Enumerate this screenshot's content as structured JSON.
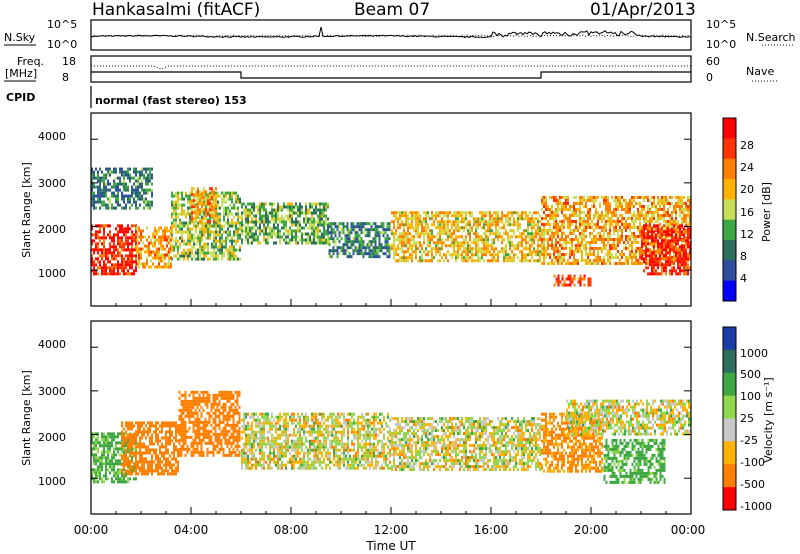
{
  "header": {
    "station": "Hankasalmi (fitACF)",
    "beam": "Beam 07",
    "date": "01/Apr/2013"
  },
  "noise_panel": {
    "left_label": "N.Sky",
    "right_label": "N.Search",
    "ticks": [
      "10^5",
      "10^0"
    ]
  },
  "freq_panel": {
    "left_label": "Freq.",
    "left_unit": "[MHz]",
    "left_ticks": [
      "18",
      "8"
    ],
    "right_ticks": [
      "60",
      "0"
    ],
    "right_label": "Nave",
    "cpid_label": "CPID",
    "cpid_value": "normal (fast stereo) 153"
  },
  "x_axis": {
    "label": "Time UT",
    "ticks": [
      "00:00",
      "04:00",
      "08:00",
      "12:00",
      "16:00",
      "20:00",
      "00:00"
    ]
  },
  "power_panel": {
    "ylabel": "Slant Range [km]",
    "yticks": [
      "4000",
      "3000",
      "2000",
      "1000"
    ],
    "colorbar_label": "Power [dB]",
    "colorbar_ticks": [
      "28",
      "24",
      "20",
      "16",
      "12",
      "8",
      "4"
    ],
    "colors": [
      "#ff0000",
      "#ff3300",
      "#ff7f00",
      "#ffb300",
      "#c6e05a",
      "#3da841",
      "#2d6e5f",
      "#2d4f9e",
      "#0000ff"
    ]
  },
  "velocity_panel": {
    "ylabel": "Slant Range [km]",
    "yticks": [
      "4000",
      "3000",
      "2000",
      "1000"
    ],
    "colorbar_label": "Velocity [m s⁻¹]",
    "colorbar_ticks": [
      "1000",
      "500",
      "100",
      "25",
      "-25",
      "-100",
      "-500",
      "-1000"
    ],
    "colors": [
      "#1a3da8",
      "#2d6e5f",
      "#3da841",
      "#8fd84c",
      "#c8c8c8",
      "#ffb300",
      "#ff7f00",
      "#ff0000"
    ]
  },
  "chart_data": {
    "type": "heatmap",
    "x_hours": [
      0,
      24
    ],
    "y_range_km": [
      180,
      4600
    ],
    "power_db": {
      "range": [
        0,
        30
      ],
      "blobs": [
        {
          "t": [
            0.0,
            1.8
          ],
          "r": [
            900,
            2050
          ],
          "power": 28
        },
        {
          "t": [
            1.8,
            3.2
          ],
          "r": [
            1050,
            2000
          ],
          "power": 20
        },
        {
          "t": [
            3.2,
            6.0
          ],
          "r": [
            1250,
            2800
          ],
          "power": 14
        },
        {
          "t": [
            4.0,
            5.0
          ],
          "r": [
            2100,
            2900
          ],
          "power": 20
        },
        {
          "t": [
            6.0,
            9.5
          ],
          "r": [
            1600,
            2550
          ],
          "power": 12
        },
        {
          "t": [
            9.5,
            12.0
          ],
          "r": [
            1250,
            2100
          ],
          "power": 8
        },
        {
          "t": [
            12.0,
            18.0
          ],
          "r": [
            1150,
            2350
          ],
          "power": 18
        },
        {
          "t": [
            18.0,
            24.0
          ],
          "r": [
            1100,
            2700
          ],
          "power": 20
        },
        {
          "t": [
            22.0,
            24.0
          ],
          "r": [
            850,
            2050
          ],
          "power": 28
        },
        {
          "t": [
            18.5,
            20.0
          ],
          "r": [
            600,
            900
          ],
          "power": 26
        },
        {
          "t": [
            0.0,
            2.5
          ],
          "r": [
            2400,
            3350
          ],
          "power": 8
        }
      ]
    },
    "velocity_ms": {
      "range": [
        -1000,
        1000
      ],
      "blobs": [
        {
          "t": [
            0.0,
            1.8
          ],
          "r": [
            900,
            2050
          ],
          "v": 150
        },
        {
          "t": [
            1.2,
            3.5
          ],
          "r": [
            1050,
            2300
          ],
          "v": -300
        },
        {
          "t": [
            3.5,
            6.0
          ],
          "r": [
            1500,
            3000
          ],
          "v": -250
        },
        {
          "t": [
            6.0,
            12.0
          ],
          "r": [
            1200,
            2500
          ],
          "v": 0
        },
        {
          "t": [
            12.0,
            18.0
          ],
          "r": [
            1150,
            2400
          ],
          "v": 0
        },
        {
          "t": [
            18.0,
            20.5
          ],
          "r": [
            1100,
            2500
          ],
          "v": -150
        },
        {
          "t": [
            20.5,
            23.0
          ],
          "r": [
            850,
            1900
          ],
          "v": 180
        },
        {
          "t": [
            19.0,
            24.0
          ],
          "r": [
            2000,
            2800
          ],
          "v": 0
        }
      ]
    }
  }
}
